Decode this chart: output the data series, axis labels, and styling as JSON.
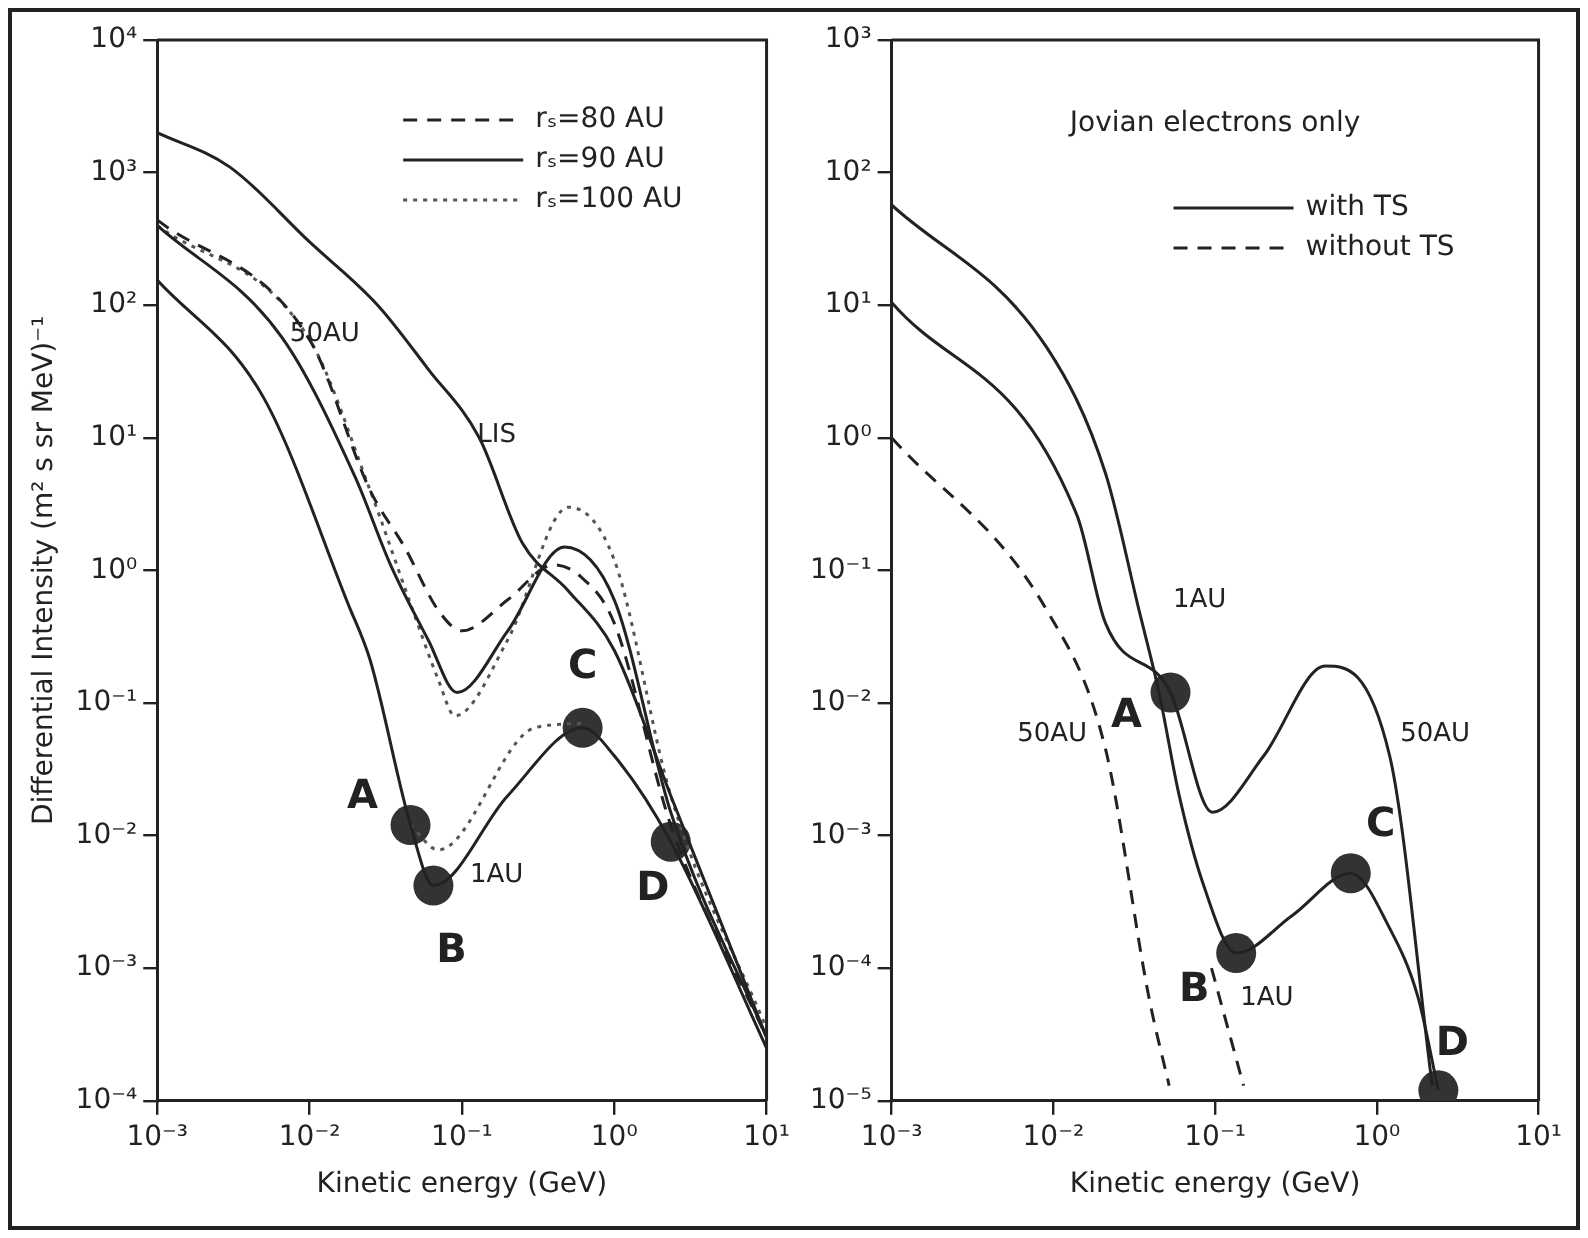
{
  "chart_data": [
    {
      "type": "line",
      "xlabel": "Kinetic energy (GeV)",
      "ylabel": "Differential Intensity (m² s sr MeV)⁻¹",
      "log": "xy",
      "grid": false,
      "legend": "top right",
      "marker": "none",
      "xlim": [
        0.001,
        10
      ],
      "ylim": [
        0.0001,
        10000
      ],
      "xticks": [
        {
          "value": 0.001,
          "label": "10⁻³"
        },
        {
          "value": 0.01,
          "label": "10⁻²"
        },
        {
          "value": 0.1,
          "label": "10⁻¹"
        },
        {
          "value": 1,
          "label": "10⁰"
        },
        {
          "value": 10,
          "label": "10¹"
        }
      ],
      "yticks": [
        {
          "value": 0.0001,
          "label": "10⁻⁴"
        },
        {
          "value": 0.001,
          "label": "10⁻³"
        },
        {
          "value": 0.01,
          "label": "10⁻²"
        },
        {
          "value": 0.1,
          "label": "10⁻¹"
        },
        {
          "value": 1,
          "label": "10⁰"
        },
        {
          "value": 10,
          "label": "10¹"
        },
        {
          "value": 100,
          "label": "10²"
        },
        {
          "value": 1000,
          "label": "10³"
        },
        {
          "value": 10000,
          "label": "10⁴"
        }
      ],
      "series": [
        {
          "color": "#222222",
          "line_style": "solid",
          "x": [
            0.001,
            0.003,
            0.01,
            0.028,
            0.06,
            0.13,
            0.25,
            0.5,
            1,
            2.35,
            10
          ],
          "values": [
            2000,
            1100,
            300,
            100,
            33,
            10,
            1.6,
            0.7,
            0.25,
            0.02,
            0.0003
          ]
        },
        {
          "name": "rₛ=80 AU",
          "color": "#222222",
          "line_style": "dashed",
          "x": [
            0.001,
            0.01,
            0.025,
            0.042,
            0.07,
            0.1,
            0.2,
            0.4,
            0.6,
            1,
            2.35,
            10
          ],
          "values": [
            440,
            55,
            4,
            1.5,
            0.5,
            0.35,
            0.6,
            1.1,
            0.9,
            0.4,
            0.012,
            0.0003
          ]
        },
        {
          "name": "rₛ=90 AU",
          "color": "#222222",
          "line_style": "solid",
          "x": [
            0.001,
            0.0066,
            0.02,
            0.034,
            0.06,
            0.093,
            0.2,
            0.47,
            1,
            2.35,
            10
          ],
          "values": [
            400,
            57,
            5,
            1.1,
            0.3,
            0.12,
            0.35,
            1.5,
            0.6,
            0.015,
            0.0003
          ]
        },
        {
          "name": "rₛ=100 AU",
          "color": "#555555",
          "line_style": "dotted",
          "x": [
            0.001,
            0.01,
            0.025,
            0.045,
            0.07,
            0.09,
            0.2,
            0.5,
            1,
            2.35,
            10
          ],
          "values": [
            400,
            55,
            4,
            0.6,
            0.15,
            0.08,
            0.3,
            3,
            1.2,
            0.02,
            0.00035
          ]
        },
        {
          "color": "#222222",
          "line_style": "solid",
          "x": [
            0.001,
            0.005,
            0.018,
            0.025,
            0.046,
            0.065,
            0.2,
            0.62,
            1,
            2.35,
            10
          ],
          "values": [
            155,
            20,
            0.55,
            0.21,
            0.012,
            0.0042,
            0.02,
            0.065,
            0.04,
            0.009,
            0.00025
          ]
        },
        {
          "color": "#555555",
          "line_style": "dotted",
          "x": [
            0.046,
            0.07,
            0.3,
            0.62
          ],
          "values": [
            0.012,
            0.0078,
            0.065,
            0.07
          ]
        },
        {
          "type": "scatter",
          "marker": "circle",
          "color": "#333333",
          "x": [
            0.046,
            0.065,
            0.62,
            2.35
          ],
          "values": [
            0.012,
            0.0042,
            0.065,
            0.009
          ],
          "value_labels": [
            "A",
            "B",
            "C",
            "D"
          ]
        }
      ],
      "annotations": [
        "50AU",
        "LIS",
        "1AU"
      ]
    },
    {
      "type": "line",
      "xlabel": "Kinetic energy (GeV)",
      "log": "xy",
      "grid": false,
      "legend": "top right",
      "legend_title": "Jovian electrons only",
      "marker": "none",
      "xlim": [
        0.001,
        10
      ],
      "ylim": [
        1e-05,
        1000
      ],
      "xticks": [
        {
          "value": 0.001,
          "label": "10⁻³"
        },
        {
          "value": 0.01,
          "label": "10⁻²"
        },
        {
          "value": 0.1,
          "label": "10⁻¹"
        },
        {
          "value": 1,
          "label": "10⁰"
        },
        {
          "value": 10,
          "label": "10¹"
        }
      ],
      "yticks": [
        {
          "value": 1e-05,
          "label": "10⁻⁵"
        },
        {
          "value": 0.0001,
          "label": "10⁻⁴"
        },
        {
          "value": 0.001,
          "label": "10⁻³"
        },
        {
          "value": 0.01,
          "label": "10⁻²"
        },
        {
          "value": 0.1,
          "label": "10⁻¹"
        },
        {
          "value": 1,
          "label": "10⁰"
        },
        {
          "value": 10,
          "label": "10¹"
        },
        {
          "value": 100,
          "label": "10²"
        },
        {
          "value": 1000,
          "label": "10³"
        }
      ],
      "series": [
        {
          "name": "with TS",
          "color": "#222222",
          "line_style": "solid",
          "x": [
            0.001,
            0.0092,
            0.021,
            0.034,
            0.045,
            0.06,
            0.085,
            0.135,
            0.3,
            0.69,
            1.2,
            1.8,
            2.4
          ],
          "values": [
            57,
            4.7,
            0.54,
            0.049,
            0.012,
            0.002,
            0.00042,
            0.00013,
            0.00025,
            0.00052,
            0.0002,
            6e-05,
            1.2e-05
          ]
        },
        {
          "color": "#222222",
          "line_style": "solid",
          "x": [
            0.001,
            0.014,
            0.021,
            0.053,
            0.096,
            0.2,
            0.48,
            1.2,
            2.2
          ],
          "values": [
            10.5,
            0.26,
            0.04,
            0.012,
            0.0015,
            0.004,
            0.019,
            0.004,
            1.3e-05
          ]
        },
        {
          "name": "without TS",
          "color": "#222222",
          "line_style": "dashed",
          "x": [
            0.001,
            0.0092,
            0.021,
            0.039,
            0.052
          ],
          "values": [
            1,
            0.049,
            0.0045,
            6e-05,
            1.3e-05
          ]
        },
        {
          "color": "#222222",
          "line_style": "dashed",
          "x": [
            0.095,
            0.15
          ],
          "values": [
            0.0001,
            1.3e-05
          ]
        },
        {
          "type": "scatter",
          "marker": "circle",
          "color": "#333333",
          "x": [
            0.053,
            0.135,
            0.69,
            2.4
          ],
          "values": [
            0.012,
            0.00013,
            0.00052,
            1.2e-05
          ],
          "value_labels": [
            "A",
            "B",
            "C",
            "D"
          ]
        }
      ],
      "annotations": [
        "1AU",
        "50AU",
        "50AU",
        "1AU"
      ]
    }
  ]
}
